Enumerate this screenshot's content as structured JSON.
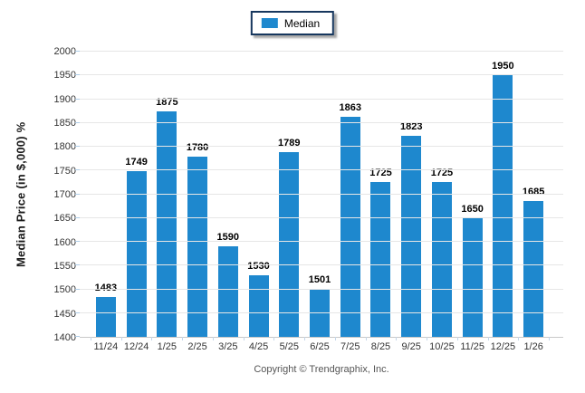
{
  "legend": {
    "label": "Median",
    "swatch_color": "#1E88CE",
    "border_color": "#17375E"
  },
  "footer": {
    "copyright": "Copyright © Trendgraphix, Inc."
  },
  "colors": {
    "bar": "#1E88CE",
    "gridline": "#E6E6E6",
    "axis_text": "#333333"
  },
  "chart_data": {
    "type": "bar",
    "title": "",
    "xlabel": "",
    "ylabel": "Median Price (in $,000) %",
    "categories": [
      "11/24",
      "12/24",
      "1/25",
      "2/25",
      "3/25",
      "4/25",
      "5/25",
      "6/25",
      "7/25",
      "8/25",
      "9/25",
      "10/25",
      "11/25",
      "12/25",
      "1/26"
    ],
    "series": [
      {
        "name": "Median",
        "color": "#1E88CE",
        "values": [
          1483,
          1749,
          1875,
          1780,
          1590,
          1530,
          1789,
          1501,
          1863,
          1725,
          1823,
          1725,
          1650,
          1950,
          1685
        ]
      }
    ],
    "ylim": [
      1400,
      2000
    ],
    "y_ticks": [
      1400,
      1450,
      1500,
      1550,
      1600,
      1650,
      1700,
      1750,
      1800,
      1850,
      1900,
      1950,
      2000
    ],
    "grid": "horizontal",
    "legend_position": "top-center",
    "value_labels": "above-bars"
  }
}
